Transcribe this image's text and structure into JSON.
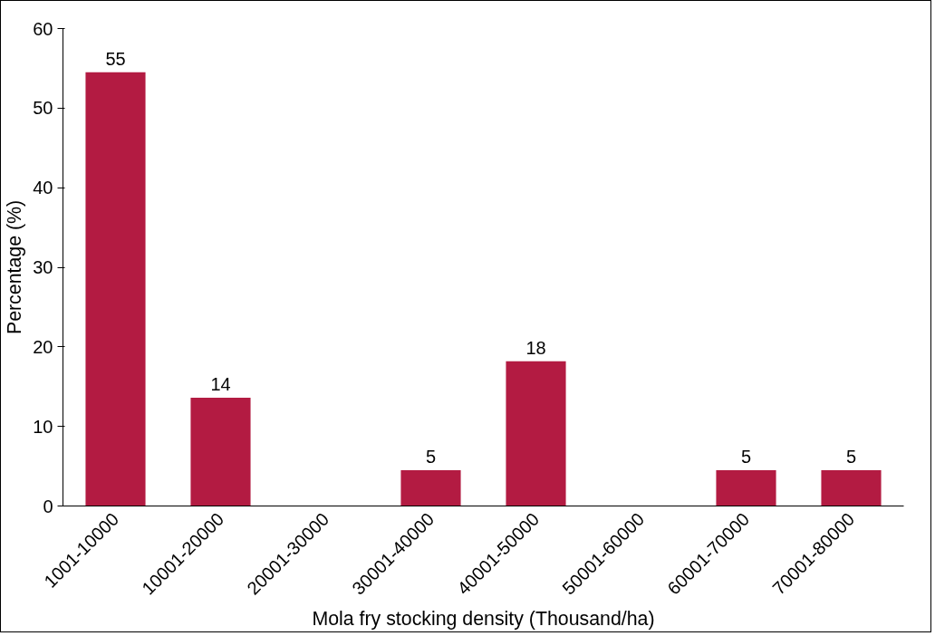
{
  "chart_data": {
    "type": "bar",
    "xlabel": "Mola fry stocking density (Thousand/ha)",
    "ylabel": "Percentage (%)",
    "categories": [
      "1001-10000",
      "10001-20000",
      "20001-30000",
      "30001-40000",
      "40001-50000",
      "50001-60000",
      "60001-70000",
      "70001-80000"
    ],
    "values": [
      54.5,
      13.6,
      null,
      4.5,
      18.2,
      null,
      4.5,
      4.5
    ],
    "value_labels": [
      "55",
      "14",
      null,
      "5",
      "18",
      null,
      "5",
      "5"
    ],
    "color": "#b31b42",
    "ylim": [
      0,
      60
    ],
    "yticks": [
      0,
      10,
      20,
      30,
      40,
      50,
      60
    ],
    "grid": false
  }
}
